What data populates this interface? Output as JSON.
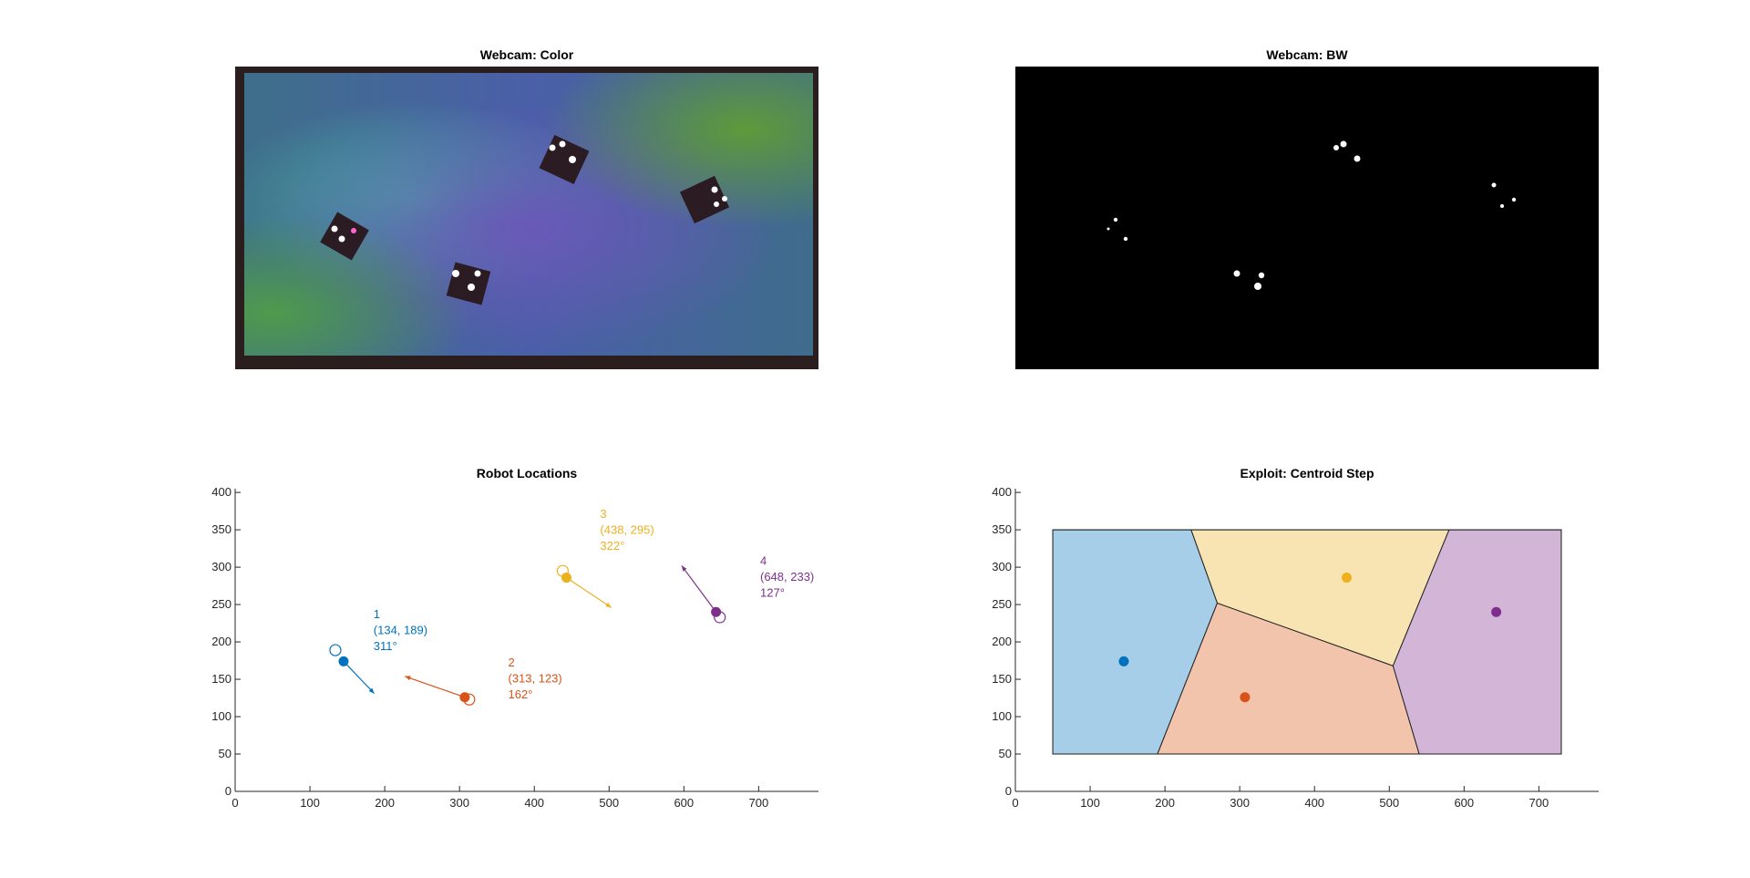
{
  "figure": {
    "color_panel": {
      "title": "Webcam: Color"
    },
    "bw_panel": {
      "title": "Webcam: BW"
    }
  },
  "chart_data": [
    {
      "type": "scatter",
      "title": "Robot Locations",
      "xlabel": "",
      "ylabel": "",
      "xlim": [
        0,
        780
      ],
      "ylim": [
        0,
        405
      ],
      "xticks": [
        "0",
        "100",
        "200",
        "300",
        "400",
        "500",
        "600",
        "700"
      ],
      "yticks": [
        "0",
        "50",
        "100",
        "150",
        "200",
        "250",
        "300",
        "350",
        "400"
      ],
      "grid": false,
      "legend": "none",
      "robots": [
        {
          "id": "1",
          "pos": "(134, 189)",
          "angle": "311°",
          "color": "#0072BD",
          "prev": [
            134,
            189
          ],
          "curr": [
            145,
            174
          ],
          "arrow_tip": [
            186,
            131
          ],
          "label_at": [
            185,
            232
          ]
        },
        {
          "id": "2",
          "pos": "(313, 123)",
          "angle": "162°",
          "color": "#D95319",
          "prev": [
            313,
            123
          ],
          "curr": [
            307,
            126
          ],
          "arrow_tip": [
            227,
            154
          ],
          "label_at": [
            365,
            167
          ]
        },
        {
          "id": "3",
          "pos": "(438, 295)",
          "angle": "322°",
          "color": "#EDB120",
          "prev": [
            438,
            295
          ],
          "curr": [
            443,
            286
          ],
          "arrow_tip": [
            503,
            246
          ],
          "label_at": [
            488,
            366
          ]
        },
        {
          "id": "4",
          "pos": "(648, 233)",
          "angle": "127°",
          "color": "#7E2F8E",
          "prev": [
            648,
            233
          ],
          "curr": [
            643,
            240
          ],
          "arrow_tip": [
            597,
            302
          ],
          "label_at": [
            702,
            303
          ]
        }
      ]
    },
    {
      "type": "scatter",
      "title": "Exploit: Centroid Step",
      "xlabel": "",
      "ylabel": "",
      "xlim": [
        0,
        780
      ],
      "ylim": [
        0,
        405
      ],
      "xticks": [
        "0",
        "100",
        "200",
        "300",
        "400",
        "500",
        "600",
        "700"
      ],
      "yticks": [
        "0",
        "50",
        "100",
        "150",
        "200",
        "250",
        "300",
        "350",
        "400"
      ],
      "grid": false,
      "legend": "none",
      "arena": {
        "x": [
          50,
          730
        ],
        "y": [
          50,
          350
        ]
      },
      "cells": [
        {
          "id": "1",
          "color": "#A6CEE8",
          "polygon": [
            [
              50,
              50
            ],
            [
              190,
              50
            ],
            [
              270,
              252
            ],
            [
              235,
              350
            ],
            [
              50,
              350
            ]
          ],
          "point": [
            145,
            174
          ]
        },
        {
          "id": "2",
          "color": "#F2C4AC",
          "polygon": [
            [
              190,
              50
            ],
            [
              540,
              50
            ],
            [
              505,
              168
            ],
            [
              270,
              252
            ]
          ],
          "point": [
            307,
            126
          ]
        },
        {
          "id": "3",
          "color": "#F8E4B3",
          "polygon": [
            [
              235,
              350
            ],
            [
              580,
              350
            ],
            [
              505,
              168
            ],
            [
              270,
              252
            ]
          ],
          "point": [
            443,
            286
          ]
        },
        {
          "id": "4",
          "color": "#D3B5D8",
          "polygon": [
            [
              580,
              350
            ],
            [
              730,
              350
            ],
            [
              730,
              50
            ],
            [
              540,
              50
            ],
            [
              505,
              168
            ]
          ],
          "point": [
            643,
            240
          ]
        }
      ]
    }
  ]
}
